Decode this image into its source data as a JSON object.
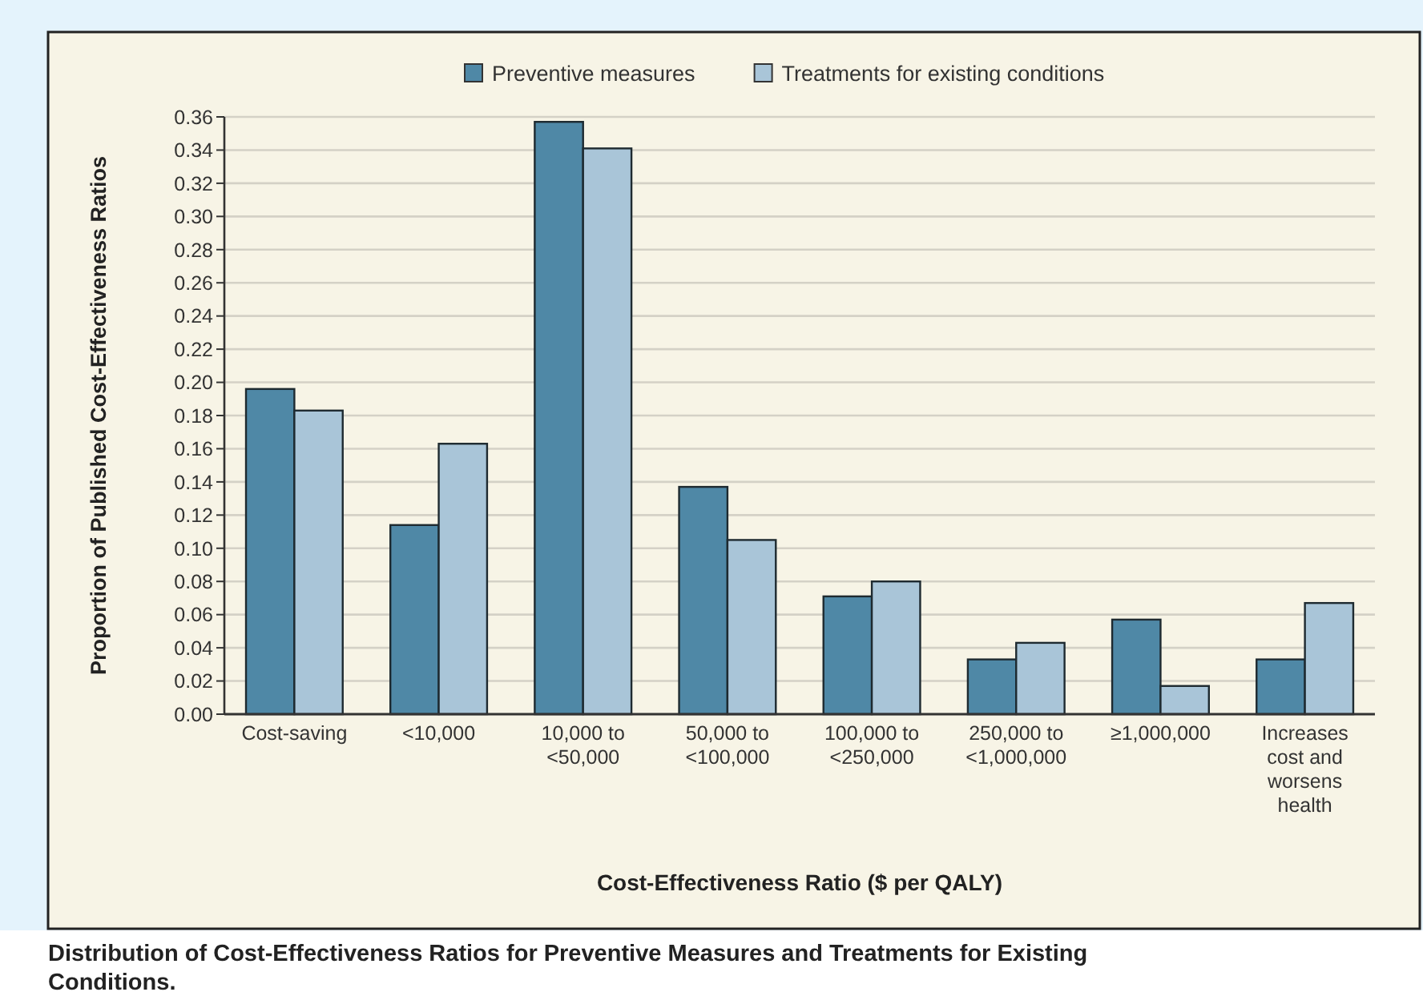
{
  "chart_data": {
    "type": "bar",
    "title": "Distribution of Cost-Effectiveness Ratios for Preventive Measures and Treatments for Existing Conditions.",
    "xlabel": "Cost-Effectiveness Ratio ($ per QALY)",
    "ylabel": "Proportion of Published Cost-Effectiveness Ratios",
    "categories": [
      "Cost-saving",
      "<10,000",
      "10,000 to <50,000",
      "50,000 to <100,000",
      "100,000 to <250,000",
      "250,000 to <1,000,000",
      "≥1,000,000",
      "Increases cost and worsens health"
    ],
    "series": [
      {
        "name": "Preventive measures",
        "color": "#4f88a6",
        "values": [
          0.196,
          0.114,
          0.357,
          0.137,
          0.071,
          0.033,
          0.057,
          0.033
        ]
      },
      {
        "name": "Treatments for existing conditions",
        "color": "#a9c5d8",
        "values": [
          0.183,
          0.163,
          0.341,
          0.105,
          0.08,
          0.043,
          0.017,
          0.067
        ]
      }
    ],
    "ylim": [
      0,
      0.36
    ],
    "yticks": [
      {
        "value": 0,
        "label": "0.00"
      },
      {
        "value": 0.02,
        "label": "0.02"
      },
      {
        "value": 0.04,
        "label": "0.04"
      },
      {
        "value": 0.06,
        "label": "0.06"
      },
      {
        "value": 0.08,
        "label": "0.08"
      },
      {
        "value": 0.1,
        "label": "0.10"
      },
      {
        "value": 0.12,
        "label": "0.12"
      },
      {
        "value": 0.14,
        "label": "0.14"
      },
      {
        "value": 0.16,
        "label": "0.16"
      },
      {
        "value": 0.18,
        "label": "0.18"
      },
      {
        "value": 0.2,
        "label": "0.20"
      },
      {
        "value": 0.22,
        "label": "0.22"
      },
      {
        "value": 0.24,
        "label": "0.24"
      },
      {
        "value": 0.26,
        "label": "0.26"
      },
      {
        "value": 0.28,
        "label": "0.28"
      },
      {
        "value": 0.3,
        "label": "0.30"
      },
      {
        "value": 0.32,
        "label": "0.32"
      },
      {
        "value": 0.34,
        "label": "0.34"
      },
      {
        "value": 0.36,
        "label": "0.36"
      }
    ],
    "grid": "y",
    "legend": "top"
  }
}
